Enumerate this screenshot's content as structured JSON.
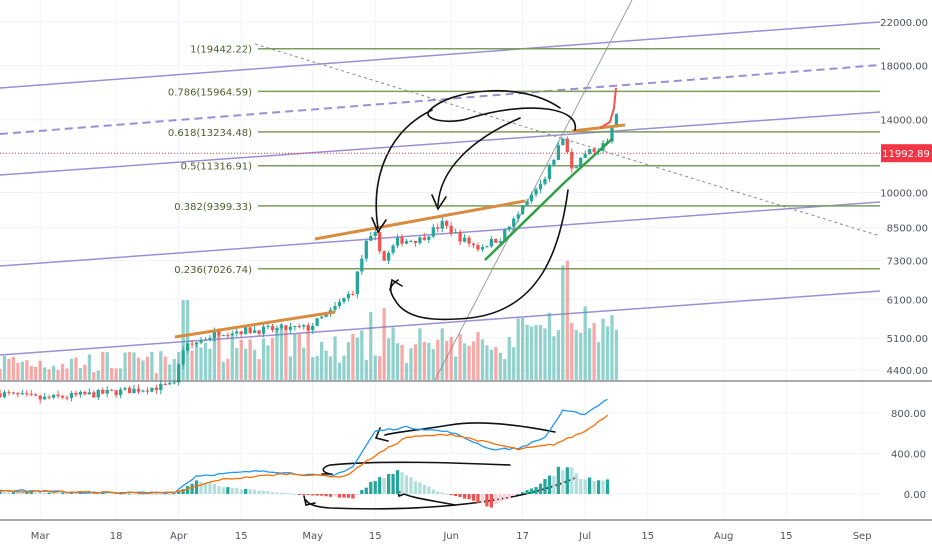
{
  "chart_data": [
    {
      "type": "candlestick",
      "y_scale": "log",
      "ylim": [
        4200,
        24000
      ],
      "y_ticks": [
        {
          "value": 22000,
          "label": "22000.00"
        },
        {
          "value": 18000,
          "label": "18000.00"
        },
        {
          "value": 14000,
          "label": "14000.00"
        },
        {
          "value": 10000,
          "label": "10000.00"
        },
        {
          "value": 8500,
          "label": "8500.00"
        },
        {
          "value": 7300,
          "label": "7300.00"
        },
        {
          "value": 6100,
          "label": "6100.00"
        },
        {
          "value": 5100,
          "label": "5100.00"
        },
        {
          "value": 4400,
          "label": "4400.00"
        }
      ],
      "last_price": {
        "value": 11992.89,
        "label": "11992.89",
        "color": "#f23645"
      },
      "fib_levels": [
        {
          "ratio": "1",
          "value": 19442.22,
          "label": "1(19442.22)"
        },
        {
          "ratio": "0.786",
          "value": 15964.59,
          "label": "0.786(15964.59)"
        },
        {
          "ratio": "0.618",
          "value": 13234.48,
          "label": "0.618(13234.48)"
        },
        {
          "ratio": "0.5",
          "value": 11316.91,
          "label": "0.5(11316.91)"
        },
        {
          "ratio": "0.382",
          "value": 9399.33,
          "label": "0.382(9399.33)"
        },
        {
          "ratio": "0.236",
          "value": 7026.74,
          "label": "0.236(7026.74)"
        }
      ],
      "x_ticks": [
        "Mar",
        "18",
        "Apr",
        "15",
        "May",
        "15",
        "Jun",
        "17",
        "Jul",
        "15",
        "Aug",
        "15",
        "Sep"
      ],
      "colors": {
        "up": "#26a69a",
        "down": "#ef5350",
        "fib": "#7e9b5b",
        "channel": "#9b8fd6",
        "trend_orange": "#d98b3f",
        "trend_green": "#2ea043"
      },
      "close_path": [
        [
          "2019-02-20",
          3950
        ],
        [
          "2019-03-01",
          3850
        ],
        [
          "2019-03-15",
          3950
        ],
        [
          "2019-03-31",
          4100
        ],
        [
          "2019-04-02",
          4850
        ],
        [
          "2019-04-10",
          5250
        ],
        [
          "2019-04-20",
          5300
        ],
        [
          "2019-04-30",
          5350
        ],
        [
          "2019-05-05",
          5750
        ],
        [
          "2019-05-10",
          6350
        ],
        [
          "2019-05-13",
          7900
        ],
        [
          "2019-05-15",
          8200
        ],
        [
          "2019-05-17",
          7300
        ],
        [
          "2019-05-20",
          8000
        ],
        [
          "2019-05-25",
          8050
        ],
        [
          "2019-05-30",
          8650
        ],
        [
          "2019-06-03",
          8100
        ],
        [
          "2019-06-07",
          7750
        ],
        [
          "2019-06-12",
          8100
        ],
        [
          "2019-06-16",
          9000
        ],
        [
          "2019-06-22",
          10600
        ],
        [
          "2019-06-26",
          12900
        ],
        [
          "2019-06-28",
          11200
        ],
        [
          "2019-07-01",
          11900
        ],
        [
          "2019-07-04",
          12300
        ],
        [
          "2019-07-06",
          12600
        ],
        [
          "2019-07-08",
          14300
        ]
      ]
    },
    {
      "type": "macd",
      "ylim": [
        -250,
        950
      ],
      "y_ticks": [
        {
          "value": 800,
          "label": "800.00"
        },
        {
          "value": 400,
          "label": "400.00"
        },
        {
          "value": 0,
          "label": "0.00"
        }
      ],
      "macd_path": [
        [
          "2019-02-20",
          40
        ],
        [
          "2019-03-15",
          10
        ],
        [
          "2019-03-31",
          15
        ],
        [
          "2019-04-05",
          180
        ],
        [
          "2019-04-20",
          230
        ],
        [
          "2019-05-05",
          170
        ],
        [
          "2019-05-10",
          270
        ],
        [
          "2019-05-15",
          620
        ],
        [
          "2019-05-22",
          660
        ],
        [
          "2019-06-01",
          610
        ],
        [
          "2019-06-10",
          440
        ],
        [
          "2019-06-16",
          450
        ],
        [
          "2019-06-22",
          560
        ],
        [
          "2019-06-26",
          820
        ],
        [
          "2019-07-01",
          790
        ],
        [
          "2019-07-06",
          940
        ]
      ],
      "signal_path": [
        [
          "2019-02-20",
          30
        ],
        [
          "2019-03-15",
          15
        ],
        [
          "2019-03-31",
          10
        ],
        [
          "2019-04-10",
          140
        ],
        [
          "2019-04-25",
          200
        ],
        [
          "2019-05-08",
          170
        ],
        [
          "2019-05-15",
          380
        ],
        [
          "2019-05-22",
          560
        ],
        [
          "2019-06-01",
          590
        ],
        [
          "2019-06-10",
          500
        ],
        [
          "2019-06-16",
          440
        ],
        [
          "2019-06-24",
          490
        ],
        [
          "2019-07-01",
          620
        ],
        [
          "2019-07-06",
          780
        ]
      ],
      "histogram_path": [
        [
          "2019-02-20",
          20
        ],
        [
          "2019-03-31",
          0
        ],
        [
          "2019-04-05",
          130
        ],
        [
          "2019-04-12",
          60
        ],
        [
          "2019-04-30",
          -10
        ],
        [
          "2019-05-10",
          -40
        ],
        [
          "2019-05-14",
          110
        ],
        [
          "2019-05-20",
          250
        ],
        [
          "2019-05-28",
          40
        ],
        [
          "2019-06-05",
          -60
        ],
        [
          "2019-06-10",
          -120
        ],
        [
          "2019-06-13",
          -60
        ],
        [
          "2019-06-20",
          80
        ],
        [
          "2019-06-27",
          300
        ],
        [
          "2019-06-30",
          140
        ],
        [
          "2019-07-06",
          150
        ]
      ]
    }
  ]
}
